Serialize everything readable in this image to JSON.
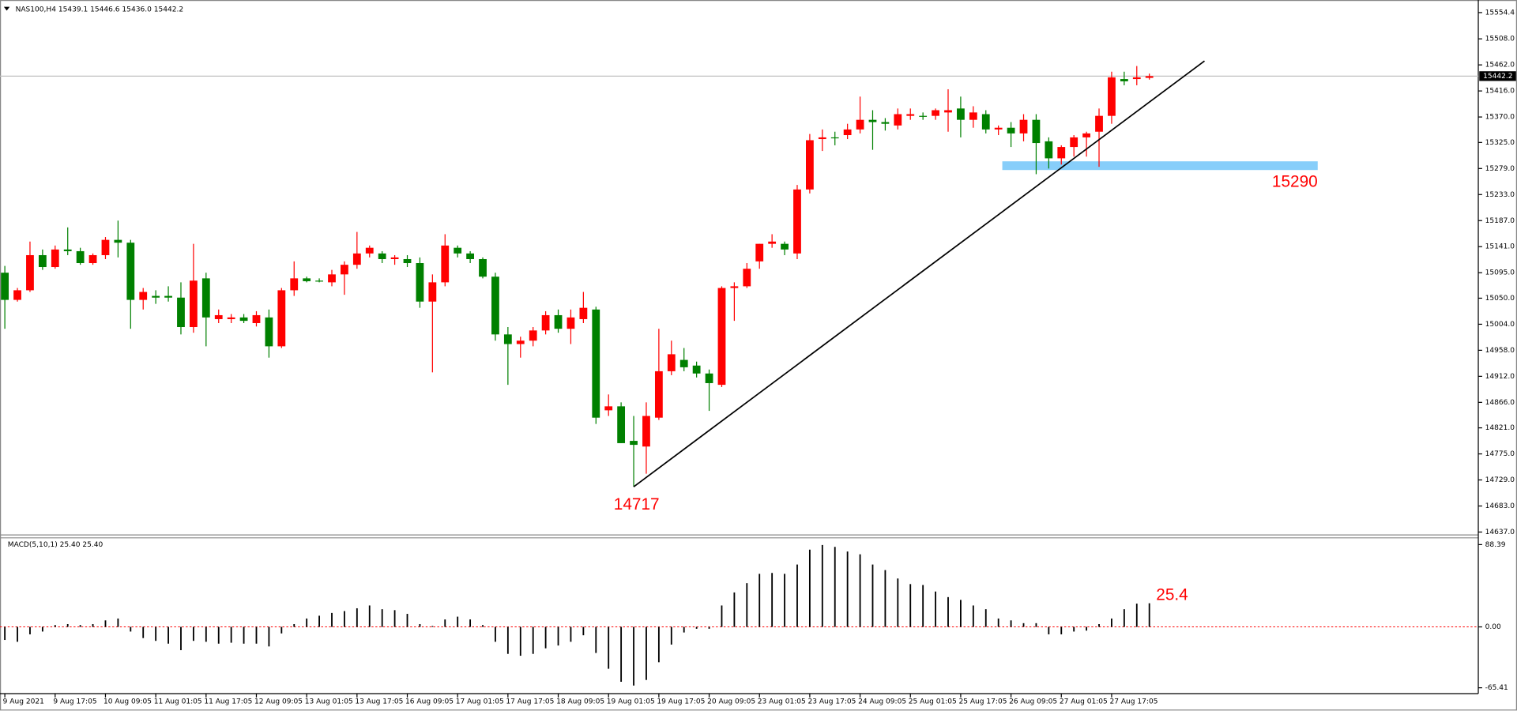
{
  "chart_data": [
    {
      "type": "candlestick",
      "title": "NAS100,H4  15439.1 15446.6 15436.0 15442.2",
      "categories": [
        "9 Aug 2021",
        null,
        null,
        null,
        "9 Aug 17:05",
        null,
        null,
        null,
        "10 Aug 09:05",
        null,
        null,
        null,
        "11 Aug 01:05",
        null,
        null,
        null,
        "11 Aug 17:05",
        null,
        null,
        null,
        "12 Aug 09:05",
        null,
        null,
        null,
        "13 Aug 01:05",
        null,
        null,
        null,
        "13 Aug 17:05",
        null,
        null,
        null,
        "16 Aug 09:05",
        null,
        null,
        null,
        "17 Aug 01:05",
        null,
        null,
        null,
        "17 Aug 17:05",
        null,
        null,
        null,
        "18 Aug 09:05",
        null,
        null,
        null,
        "19 Aug 01:05",
        null,
        null,
        null,
        "19 Aug 17:05",
        null,
        null,
        null,
        "20 Aug 09:05",
        null,
        null,
        null,
        "23 Aug 01:05",
        null,
        null,
        null,
        "23 Aug 17:05",
        null,
        null,
        null,
        "24 Aug 09:05",
        null,
        null,
        null,
        "25 Aug 01:05",
        null,
        null,
        null,
        "25 Aug 17:05",
        null,
        null,
        null,
        "26 Aug 09:05",
        null,
        null,
        null,
        "27 Aug 01:05",
        null,
        null,
        null,
        "27 Aug 17:05",
        null,
        null,
        null
      ],
      "open": [
        15095,
        15047,
        15064,
        15126,
        15105,
        15136,
        15133,
        15112,
        15126,
        15153,
        15148,
        15047,
        15054,
        15054,
        15051,
        14999,
        15085,
        15013,
        15013,
        15016,
        15006,
        15016,
        14965,
        15064,
        15085,
        15081,
        15078,
        15092,
        15109,
        15129,
        15129,
        15119,
        15119,
        15112,
        15044,
        15078,
        15139,
        15129,
        15119,
        15088,
        14986,
        14969,
        14975,
        14993,
        15020,
        14996,
        15013,
        15030,
        14852,
        14859,
        14798,
        14788,
        14839,
        14921,
        14941,
        14931,
        14917,
        14897,
        15068,
        15071,
        15115,
        15146,
        15146,
        15129,
        15242,
        15331,
        15334,
        15338,
        15348,
        15365,
        15361,
        15355,
        15372,
        15372,
        15372,
        15378,
        15385,
        15365,
        15375,
        15348,
        15351,
        15341,
        15365,
        15327,
        15297,
        15317,
        15334,
        15344,
        15372,
        15437,
        15437,
        15439.1
      ],
      "high": [
        15107,
        15068,
        15150,
        15136,
        15143,
        15175,
        15139,
        15129,
        15158,
        15187,
        15153,
        15068,
        15064,
        15071,
        15078,
        15146,
        15095,
        15030,
        15022,
        15022,
        15027,
        15030,
        15068,
        15115,
        15088,
        15085,
        15100,
        15115,
        15167,
        15143,
        15133,
        15126,
        15126,
        15122,
        15092,
        15163,
        15143,
        15133,
        15122,
        15095,
        14999,
        14982,
        14999,
        15027,
        15030,
        15030,
        15061,
        15035,
        14880,
        14866,
        14842,
        14866,
        14996,
        14975,
        14962,
        14938,
        14924,
        15071,
        15078,
        15112,
        15146,
        15163,
        15150,
        15250,
        15340,
        15348,
        15344,
        15358,
        15406,
        15382,
        15368,
        15385,
        15385,
        15378,
        15385,
        15419,
        15406,
        15389,
        15382,
        15355,
        15361,
        15375,
        15375,
        15334,
        15320,
        15338,
        15344,
        15385,
        15450,
        15450,
        15460,
        15446.6
      ],
      "low": [
        14996,
        15044,
        15061,
        15100,
        15102,
        15126,
        15109,
        15109,
        15119,
        15122,
        14996,
        15030,
        15040,
        15044,
        14986,
        14989,
        14965,
        15006,
        15006,
        15006,
        15000,
        14945,
        14962,
        15054,
        15078,
        15078,
        15071,
        15056,
        15102,
        15122,
        15112,
        15109,
        15105,
        15033,
        14919,
        15071,
        15122,
        15112,
        15085,
        14975,
        14897,
        14945,
        14965,
        14986,
        14989,
        14969,
        15006,
        14828,
        14842,
        14794,
        14717,
        14740,
        14835,
        14914,
        14921,
        14910,
        14851,
        14893,
        15010,
        15068,
        15102,
        15139,
        15126,
        15119,
        15235,
        15310,
        15320,
        15331,
        15341,
        15312,
        15346,
        15348,
        15365,
        15365,
        15365,
        15344,
        15334,
        15351,
        15341,
        15338,
        15317,
        15327,
        15269,
        15279,
        15286,
        15300,
        15300,
        15282,
        15358,
        15426,
        15426,
        15436
      ],
      "close": [
        15047,
        15064,
        15126,
        15105,
        15136,
        15133,
        15112,
        15126,
        15153,
        15148,
        15047,
        15061,
        15051,
        15051,
        14999,
        15081,
        15016,
        15020,
        15016,
        15010,
        15020,
        14965,
        15064,
        15085,
        15080,
        15080,
        15092,
        15109,
        15129,
        15139,
        15119,
        15122,
        15112,
        15044,
        15078,
        15143,
        15129,
        15119,
        15088,
        14986,
        14969,
        14975,
        14993,
        15020,
        14996,
        15016,
        15033,
        14839,
        14859,
        14794,
        14791,
        14842,
        14921,
        14951,
        14928,
        14917,
        14900,
        15068,
        15071,
        15102,
        15146,
        15150,
        15136,
        15242,
        15329,
        15334,
        15334,
        15348,
        15365,
        15361,
        15358,
        15375,
        15375,
        15372,
        15382,
        15382,
        15365,
        15378,
        15348,
        15351,
        15341,
        15365,
        15324,
        15297,
        15317,
        15334,
        15341,
        15372,
        15440,
        15433,
        15440,
        15442.2
      ],
      "up_color": "#ff0000",
      "down_color": "#008000",
      "ylim": [
        14637,
        15554.4
      ],
      "yticks": [
        15554.4,
        {
          "value": 15508,
          "label": "15508.0"
        },
        {
          "value": 15462,
          "label": "15462.0"
        },
        {
          "value": 15416,
          "label": "15416.0"
        },
        {
          "value": 15370,
          "label": "15370.0"
        },
        {
          "value": 15325,
          "label": "15325.0"
        },
        {
          "value": 15279,
          "label": "15279.0"
        },
        {
          "value": 15233,
          "label": "15233.0"
        },
        {
          "value": 15187,
          "label": "15187.0"
        },
        {
          "value": 15141,
          "label": "15141.0"
        },
        {
          "value": 15095,
          "label": "15095.0"
        },
        {
          "value": 15050,
          "label": "15050.0"
        },
        {
          "value": 15004,
          "label": "15004.0"
        },
        {
          "value": 14958,
          "label": "14958.0"
        },
        {
          "value": 14912,
          "label": "14912.0"
        },
        {
          "value": 14866,
          "label": "14866.0"
        },
        {
          "value": 14821,
          "label": "14821.0"
        },
        {
          "value": 14775,
          "label": "14775.0"
        },
        {
          "value": 14729,
          "label": "14729.0"
        },
        {
          "value": 14683,
          "label": "14683.0"
        },
        {
          "value": 14637,
          "label": "14637.0"
        }
      ],
      "current_price": 15442.2,
      "low_label": 14717,
      "level_label": 15290,
      "level_color": "#87cefa",
      "annotation_color": "#ff0000"
    },
    {
      "type": "bar",
      "title": "MACD(5,10,1) 25.40 25.40",
      "values": [
        -14,
        -16,
        -8,
        -5,
        2,
        3,
        2,
        3,
        7,
        9,
        -5,
        -12,
        -15,
        -18,
        -25,
        -15,
        -16,
        -18,
        -17,
        -18,
        -18,
        -21,
        -7,
        3,
        9,
        12,
        15,
        17,
        20,
        23,
        19,
        18,
        14,
        3,
        1,
        8,
        11,
        8,
        2,
        -16,
        -29,
        -31,
        -29,
        -23,
        -20,
        -16,
        -9,
        -28,
        -45,
        -59,
        -63,
        -57,
        -38,
        -19,
        -6,
        -2,
        -2,
        23,
        37,
        47,
        57,
        58,
        57,
        67,
        83,
        88,
        86,
        81,
        78,
        67,
        61,
        52,
        46,
        45,
        38,
        32,
        29,
        23,
        19,
        9,
        7,
        4,
        4,
        -8,
        -8,
        -5,
        -4,
        3,
        9,
        19,
        25,
        25.4
      ],
      "color": "#000000",
      "ylim": [
        -65.41,
        88.39
      ],
      "yticks": [
        88.39,
        {
          "value": 0,
          "label": "0.00"
        },
        -65.41
      ],
      "value_label": 25.4
    }
  ]
}
